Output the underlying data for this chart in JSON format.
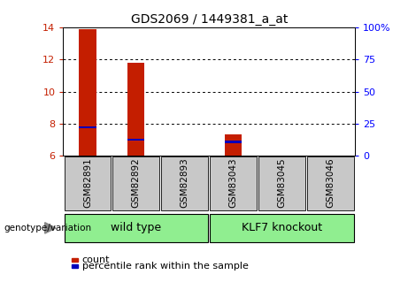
{
  "title": "GDS2069 / 1449381_a_at",
  "samples": [
    "GSM82891",
    "GSM82892",
    "GSM82893",
    "GSM83043",
    "GSM83045",
    "GSM83046"
  ],
  "count_values": [
    13.9,
    11.8,
    6.0,
    7.3,
    6.0,
    6.0
  ],
  "percentile_values": [
    7.75,
    7.0,
    6.0,
    6.85,
    6.0,
    6.0
  ],
  "ylim_left": [
    6,
    14
  ],
  "ylim_right": [
    0,
    100
  ],
  "yticks_left": [
    6,
    8,
    10,
    12,
    14
  ],
  "yticks_right": [
    0,
    25,
    50,
    75,
    100
  ],
  "ytick_right_labels": [
    "0",
    "25",
    "50",
    "75",
    "100%"
  ],
  "bar_color_red": "#C41E00",
  "bar_color_blue": "#0000BB",
  "title_fontsize": 10,
  "tick_fontsize": 8,
  "group_label": "genotype/variation",
  "wt_label": "wild type",
  "ko_label": "KLF7 knockout",
  "legend_count": "count",
  "legend_percentile": "percentile rank within the sample",
  "bar_width": 0.35,
  "group_box_color": "#90EE90",
  "sample_box_color": "#C8C8C8",
  "wt_indices": [
    0,
    1,
    2
  ],
  "ko_indices": [
    3,
    4,
    5
  ]
}
